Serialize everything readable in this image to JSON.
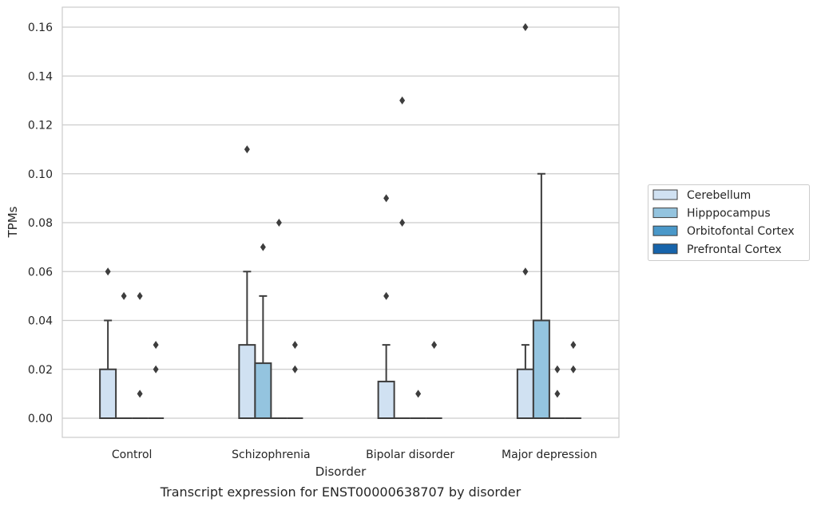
{
  "chart_data": {
    "type": "box",
    "xlabel": "Disorder",
    "ylabel": "TPMs",
    "caption": "Transcript expression for ENST00000638707 by disorder",
    "ylim": [
      -0.008,
      0.168
    ],
    "yticks": [
      "0.00",
      "0.02",
      "0.04",
      "0.06",
      "0.08",
      "0.10",
      "0.12",
      "0.14",
      "0.16"
    ],
    "grid": true,
    "legend_position": "right",
    "categories": [
      "Control",
      "Schizophrenia",
      "Bipolar disorder",
      "Major depression"
    ],
    "series": [
      {
        "name": "Cerebellum",
        "color": "#d0e1f2",
        "boxes": [
          {
            "q1": 0,
            "median": 0,
            "q3": 0.02,
            "whisker_low": 0,
            "whisker_high": 0.04,
            "outliers": [
              0.06
            ]
          },
          {
            "q1": 0,
            "median": 0,
            "q3": 0.03,
            "whisker_low": 0,
            "whisker_high": 0.06,
            "outliers": [
              0.11
            ]
          },
          {
            "q1": 0,
            "median": 0,
            "q3": 0.015,
            "whisker_low": 0,
            "whisker_high": 0.03,
            "outliers": [
              0.05,
              0.09
            ]
          },
          {
            "q1": 0,
            "median": 0,
            "q3": 0.02,
            "whisker_low": 0,
            "whisker_high": 0.03,
            "outliers": [
              0.06,
              0.16
            ]
          }
        ]
      },
      {
        "name": "Hipppocampus",
        "color": "#94c4df",
        "boxes": [
          {
            "q1": 0,
            "median": 0,
            "q3": 0,
            "whisker_low": 0,
            "whisker_high": 0,
            "outliers": [
              0.05
            ]
          },
          {
            "q1": 0,
            "median": 0,
            "q3": 0.0225,
            "whisker_low": 0,
            "whisker_high": 0.05,
            "outliers": [
              0.07
            ]
          },
          {
            "q1": 0,
            "median": 0,
            "q3": 0,
            "whisker_low": 0,
            "whisker_high": 0,
            "outliers": [
              0.08,
              0.13
            ]
          },
          {
            "q1": 0,
            "median": 0,
            "q3": 0.04,
            "whisker_low": 0,
            "whisker_high": 0.1,
            "outliers": []
          }
        ]
      },
      {
        "name": "Orbitofontal Cortex",
        "color": "#4a98c9",
        "boxes": [
          {
            "q1": 0,
            "median": 0,
            "q3": 0,
            "whisker_low": 0,
            "whisker_high": 0,
            "outliers": [
              0.01,
              0.05
            ]
          },
          {
            "q1": 0,
            "median": 0,
            "q3": 0,
            "whisker_low": 0,
            "whisker_high": 0,
            "outliers": [
              0.08
            ]
          },
          {
            "q1": 0,
            "median": 0,
            "q3": 0,
            "whisker_low": 0,
            "whisker_high": 0,
            "outliers": [
              0.01
            ]
          },
          {
            "q1": 0,
            "median": 0,
            "q3": 0,
            "whisker_low": 0,
            "whisker_high": 0,
            "outliers": [
              0.01,
              0.02
            ]
          }
        ]
      },
      {
        "name": "Prefrontal Cortex",
        "color": "#1764ab",
        "boxes": [
          {
            "q1": 0,
            "median": 0,
            "q3": 0,
            "whisker_low": 0,
            "whisker_high": 0,
            "outliers": [
              0.02,
              0.03
            ]
          },
          {
            "q1": 0,
            "median": 0,
            "q3": 0,
            "whisker_low": 0,
            "whisker_high": 0,
            "outliers": [
              0.02,
              0.03
            ]
          },
          {
            "q1": 0,
            "median": 0,
            "q3": 0,
            "whisker_low": 0,
            "whisker_high": 0,
            "outliers": [
              0.03
            ]
          },
          {
            "q1": 0,
            "median": 0,
            "q3": 0,
            "whisker_low": 0,
            "whisker_high": 0,
            "outliers": [
              0.02,
              0.03
            ]
          }
        ]
      }
    ]
  }
}
